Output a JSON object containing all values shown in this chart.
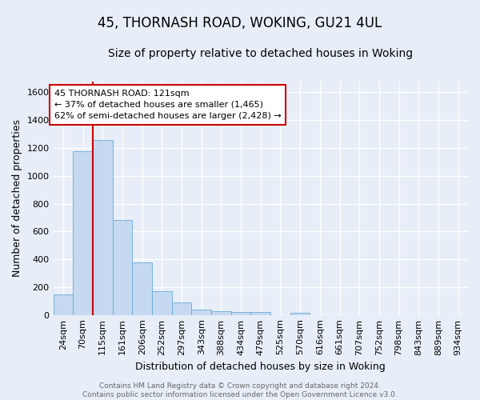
{
  "title1": "45, THORNASH ROAD, WOKING, GU21 4UL",
  "title2": "Size of property relative to detached houses in Woking",
  "xlabel": "Distribution of detached houses by size in Woking",
  "ylabel": "Number of detached properties",
  "bar_labels": [
    "24sqm",
    "70sqm",
    "115sqm",
    "161sqm",
    "206sqm",
    "252sqm",
    "297sqm",
    "343sqm",
    "388sqm",
    "434sqm",
    "479sqm",
    "525sqm",
    "570sqm",
    "616sqm",
    "661sqm",
    "707sqm",
    "752sqm",
    "798sqm",
    "843sqm",
    "889sqm",
    "934sqm"
  ],
  "bar_values": [
    150,
    1175,
    1260,
    680,
    375,
    170,
    90,
    37,
    26,
    22,
    22,
    0,
    17,
    0,
    0,
    0,
    0,
    0,
    0,
    0,
    0
  ],
  "bar_color": "#c5d9f0",
  "bar_edgecolor": "#6aaad4",
  "vline_color": "#cc0000",
  "vline_x": 1.5,
  "ylim": [
    0,
    1680
  ],
  "yticks": [
    0,
    200,
    400,
    600,
    800,
    1000,
    1200,
    1400,
    1600
  ],
  "background_color": "#e8eef8",
  "grid_color": "#ffffff",
  "annotation_box_facecolor": "#ffffff",
  "annotation_box_edgecolor": "#cc0000",
  "annotation_title": "45 THORNASH ROAD: 121sqm",
  "annotation_line1": "← 37% of detached houses are smaller (1,465)",
  "annotation_line2": "62% of semi-detached houses are larger (2,428) →",
  "footer_line1": "Contains HM Land Registry data © Crown copyright and database right 2024.",
  "footer_line2": "Contains public sector information licensed under the Open Government Licence v3.0.",
  "title1_fontsize": 12,
  "title2_fontsize": 10,
  "xlabel_fontsize": 9,
  "ylabel_fontsize": 9,
  "tick_fontsize": 8,
  "annotation_fontsize": 8,
  "footer_fontsize": 6.5
}
